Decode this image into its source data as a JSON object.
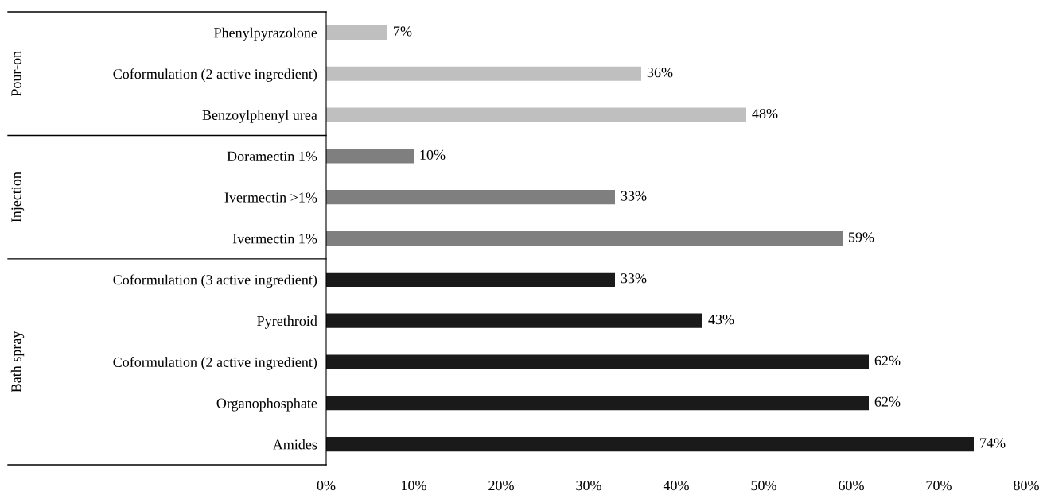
{
  "chart_data": {
    "type": "bar",
    "orientation": "horizontal",
    "categories": [
      "Phenylpyrazolone",
      "Coformulation (2 active ingredient)",
      "Benzoylphenyl urea",
      "Doramectin 1%",
      "Ivermectin >1%",
      "Ivermectin 1%",
      "Coformulation (3 active ingredient)",
      "Pyrethroid",
      "Coformulation (2 active ingredient)",
      "Organophosphate",
      "Amides"
    ],
    "series": [
      {
        "color": "#bfbfbf",
        "values": [
          7,
          36,
          48,
          null,
          null,
          null,
          null,
          null,
          null,
          null,
          null
        ],
        "value_labels": [
          "7%",
          "36%",
          "48%",
          null,
          null,
          null,
          null,
          null,
          null,
          null,
          null
        ]
      },
      {
        "color": "#7f7f7f",
        "values": [
          null,
          null,
          null,
          10,
          33,
          59,
          null,
          null,
          null,
          null,
          null
        ],
        "value_labels": [
          null,
          null,
          null,
          "10%",
          "33%",
          "59%",
          null,
          null,
          null,
          null,
          null
        ]
      },
      {
        "color": "#1a1a1a",
        "values": [
          null,
          null,
          null,
          null,
          null,
          null,
          33,
          43,
          62,
          62,
          74
        ],
        "value_labels": [
          null,
          null,
          null,
          null,
          null,
          null,
          "33%",
          "43%",
          "62%",
          "62%",
          "74%"
        ]
      }
    ],
    "annotations": [
      "Pour-on",
      "Injection",
      "Bath spray"
    ],
    "xlim": [
      0,
      80
    ],
    "xticks": [
      {
        "value": 0,
        "label": "0%"
      },
      {
        "value": 10,
        "label": "10%"
      },
      {
        "value": 20,
        "label": "20%"
      },
      {
        "value": 30,
        "label": "30%"
      },
      {
        "value": 40,
        "label": "40%"
      },
      {
        "value": 50,
        "label": "50%"
      },
      {
        "value": 60,
        "label": "60%"
      },
      {
        "value": 70,
        "label": "70%"
      },
      {
        "value": 80,
        "label": "80%"
      }
    ],
    "grid": false,
    "legend": false
  }
}
